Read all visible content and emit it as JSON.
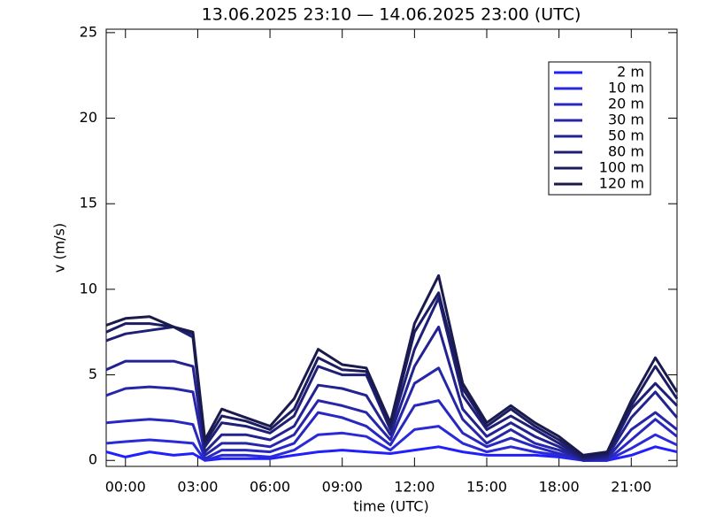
{
  "chart_data": {
    "type": "line",
    "title": "13.06.2025 23:10 — 14.06.2025 23:00 (UTC)",
    "x_label": "time (UTC)",
    "y_label": "v (m/s)",
    "x": [
      -0.8,
      0,
      1,
      2,
      2.8,
      3.3,
      4,
      5,
      6,
      7,
      8,
      9,
      10,
      11,
      12,
      13,
      14,
      15,
      16,
      17,
      18,
      19,
      20,
      21,
      22,
      22.9
    ],
    "xlim": [
      -0.8,
      22.9
    ],
    "xticks": [
      {
        "value": 0,
        "label": "00:00"
      },
      {
        "value": 3,
        "label": "03:00"
      },
      {
        "value": 6,
        "label": "06:00"
      },
      {
        "value": 9,
        "label": "09:00"
      },
      {
        "value": 12,
        "label": "12:00"
      },
      {
        "value": 15,
        "label": "15:00"
      },
      {
        "value": 18,
        "label": "18:00"
      },
      {
        "value": 21,
        "label": "21:00"
      }
    ],
    "ylim": [
      -0.35,
      25.2
    ],
    "yticks": [
      0,
      5,
      10,
      15,
      20,
      25
    ],
    "legend": "upper right",
    "series": [
      {
        "name": "2 m",
        "color": "#2020ff",
        "values": [
          0.5,
          0.2,
          0.5,
          0.3,
          0.4,
          0.0,
          0.1,
          0.1,
          0.1,
          0.3,
          0.5,
          0.6,
          0.5,
          0.4,
          0.6,
          0.8,
          0.5,
          0.3,
          0.3,
          0.3,
          0.2,
          0.0,
          0.0,
          0.3,
          0.8,
          0.5
        ]
      },
      {
        "name": "10 m",
        "color": "#2a2ad8",
        "values": [
          1.0,
          1.1,
          1.2,
          1.1,
          1.0,
          0.0,
          0.3,
          0.3,
          0.2,
          0.6,
          1.5,
          1.6,
          1.4,
          0.6,
          1.8,
          2.0,
          1.0,
          0.5,
          0.8,
          0.5,
          0.3,
          0.0,
          0.0,
          0.7,
          1.5,
          0.9
        ]
      },
      {
        "name": "20 m",
        "color": "#2828c0",
        "values": [
          2.2,
          2.3,
          2.4,
          2.3,
          2.1,
          0.1,
          0.6,
          0.6,
          0.5,
          1.0,
          2.8,
          2.5,
          2.0,
          0.9,
          3.2,
          3.5,
          1.6,
          0.8,
          1.3,
          0.8,
          0.4,
          0.0,
          0.0,
          1.2,
          2.4,
          1.4
        ]
      },
      {
        "name": "30 m",
        "color": "#2626a8",
        "values": [
          3.8,
          4.2,
          4.3,
          4.2,
          4.0,
          0.3,
          1.0,
          1.0,
          0.8,
          1.5,
          3.5,
          3.2,
          2.8,
          1.2,
          4.5,
          5.4,
          2.4,
          1.0,
          1.8,
          1.0,
          0.6,
          0.0,
          0.1,
          1.8,
          2.8,
          1.8
        ]
      },
      {
        "name": "50 m",
        "color": "#222290",
        "values": [
          5.3,
          5.8,
          5.8,
          5.8,
          5.5,
          0.5,
          1.5,
          1.5,
          1.2,
          2.0,
          4.4,
          4.2,
          3.8,
          1.5,
          5.5,
          7.8,
          3.0,
          1.4,
          2.2,
          1.4,
          0.8,
          0.0,
          0.2,
          2.5,
          4.0,
          2.5
        ]
      },
      {
        "name": "80 m",
        "color": "#1f1f78",
        "values": [
          7.0,
          7.4,
          7.6,
          7.8,
          7.2,
          0.8,
          2.2,
          2.0,
          1.6,
          2.6,
          5.5,
          5.0,
          5.0,
          1.8,
          6.5,
          9.5,
          3.8,
          1.8,
          2.6,
          1.8,
          1.0,
          0.1,
          0.3,
          3.0,
          4.5,
          3.2
        ]
      },
      {
        "name": "100 m",
        "color": "#1c1c62",
        "values": [
          7.5,
          8.0,
          8.0,
          7.8,
          7.4,
          1.0,
          2.6,
          2.3,
          1.8,
          3.0,
          6.0,
          5.3,
          5.2,
          2.0,
          7.5,
          9.8,
          4.2,
          2.0,
          3.0,
          2.0,
          1.2,
          0.2,
          0.4,
          3.2,
          5.5,
          3.6
        ]
      },
      {
        "name": "120 m",
        "color": "#1a1a4c",
        "values": [
          7.9,
          8.3,
          8.4,
          7.8,
          7.5,
          1.2,
          3.0,
          2.5,
          2.0,
          3.6,
          6.5,
          5.6,
          5.4,
          2.2,
          8.0,
          10.8,
          4.5,
          2.2,
          3.2,
          2.2,
          1.4,
          0.3,
          0.5,
          3.5,
          6.0,
          4.0
        ]
      }
    ]
  }
}
